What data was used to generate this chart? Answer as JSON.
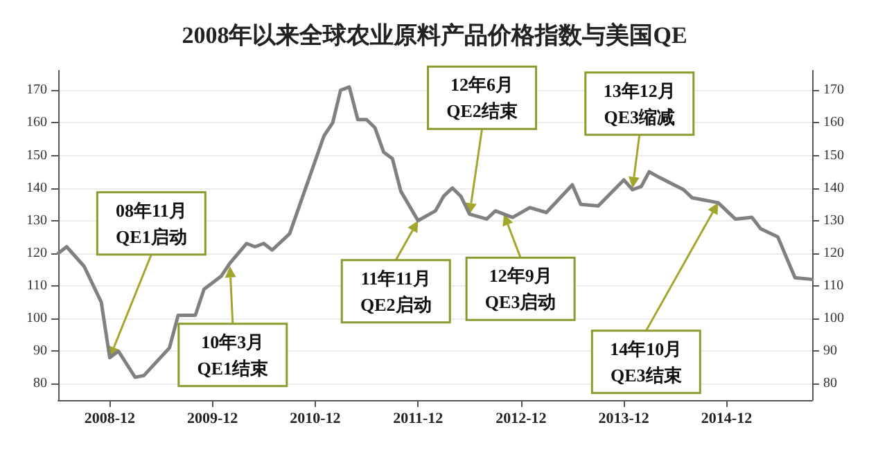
{
  "chart_data": {
    "type": "line",
    "title": "2008年以来全球农业原料产品价格指数与美国QE",
    "x": [
      "2008-06",
      "2008-07",
      "2008-09",
      "2008-11",
      "2008-12",
      "2009-01",
      "2009-03",
      "2009-04",
      "2009-07",
      "2009-08",
      "2009-10",
      "2009-11",
      "2010-01",
      "2010-02",
      "2010-04",
      "2010-05",
      "2010-06",
      "2010-07",
      "2010-09",
      "2010-11",
      "2011-01",
      "2011-02",
      "2011-03",
      "2011-04",
      "2011-05",
      "2011-06",
      "2011-07",
      "2011-08",
      "2011-09",
      "2011-10",
      "2011-12",
      "2012-02",
      "2012-03",
      "2012-04",
      "2012-05",
      "2012-06",
      "2012-08",
      "2012-09",
      "2012-11",
      "2013-01",
      "2013-03",
      "2013-06",
      "2013-07",
      "2013-09",
      "2013-12",
      "2014-01",
      "2014-02",
      "2014-03",
      "2014-04",
      "2014-07",
      "2014-08",
      "2014-11",
      "2015-01",
      "2015-03",
      "2015-04",
      "2015-06",
      "2015-08",
      "2015-10"
    ],
    "series": [
      {
        "color": "#808080",
        "values": [
          120,
          122,
          116,
          105,
          88,
          90,
          82,
          82.5,
          91,
          101,
          101,
          109,
          113,
          117,
          123,
          122,
          123,
          121,
          126,
          141,
          156,
          160,
          170,
          171,
          161,
          161,
          158.5,
          151,
          149,
          139,
          130,
          133,
          137.5,
          140,
          137.5,
          132,
          130.5,
          133,
          131,
          134,
          132.5,
          141,
          135,
          134.5,
          142.5,
          139.5,
          140.5,
          145,
          143.5,
          139.5,
          137,
          135.5,
          130.5,
          131,
          127.5,
          125,
          112.5,
          112
        ]
      }
    ],
    "xlim": [
      "2008-06",
      "2015-10"
    ],
    "xticks": [
      "2008-12",
      "2009-12",
      "2010-12",
      "2011-12",
      "2012-12",
      "2013-12",
      "2014-12"
    ],
    "ylim": [
      75,
      176
    ],
    "yticks": [
      80,
      90,
      100,
      110,
      120,
      130,
      140,
      150,
      160,
      170
    ],
    "y2lim": [
      75,
      176
    ],
    "y2ticks": [
      80,
      90,
      100,
      110,
      120,
      130,
      140,
      150,
      160,
      170
    ],
    "grid": "y",
    "marker": "none",
    "line_style": "solid",
    "annotations": [
      {
        "text": "08年11月\nQE1启动",
        "x": "2008-12",
        "y": 88
      },
      {
        "text": "10年3月\nQE1结束",
        "x": "2010-02",
        "y": 116
      },
      {
        "text": "11年11月\nQE2启动",
        "x": "2011-12",
        "y": 130
      },
      {
        "text": "12年6月\nQE2结束",
        "x": "2012-06",
        "y": 132
      },
      {
        "text": "12年9月\nQE3启动",
        "x": "2012-10",
        "y": 132
      },
      {
        "text": "13年12月\nQE3缩减",
        "x": "2014-01",
        "y": 140
      },
      {
        "text": "14年10月\nQE3结束",
        "x": "2014-11",
        "y": 135.5
      }
    ]
  }
}
